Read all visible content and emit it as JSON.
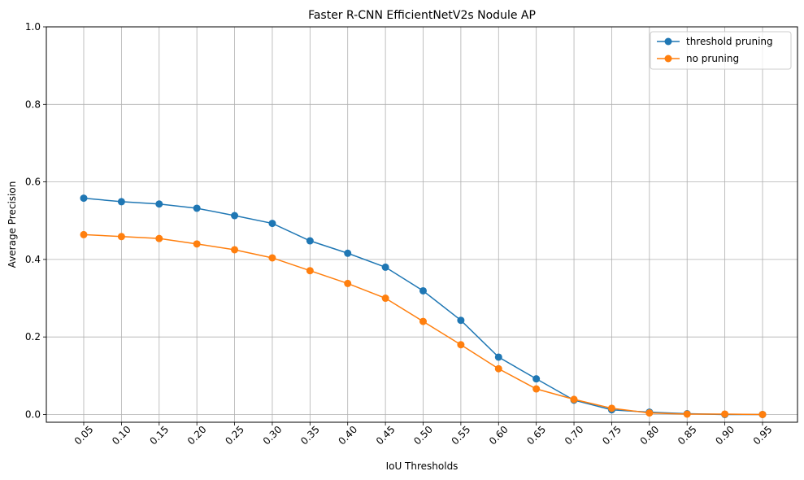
{
  "chart_data": {
    "type": "line",
    "title": "Faster R-CNN EfficientNetV2s Nodule AP",
    "xlabel": "IoU Thresholds",
    "ylabel": "Average Precision",
    "x": [
      "0.05",
      "0.10",
      "0.15",
      "0.20",
      "0.25",
      "0.30",
      "0.35",
      "0.40",
      "0.45",
      "0.50",
      "0.55",
      "0.60",
      "0.65",
      "0.70",
      "0.75",
      "0.80",
      "0.85",
      "0.90",
      "0.95"
    ],
    "ylim": [
      -0.02,
      1.0
    ],
    "yticks": [
      "0.0",
      "0.2",
      "0.4",
      "0.6",
      "0.8",
      "1.0"
    ],
    "grid": true,
    "legend": "top-right",
    "series": [
      {
        "name": "threshold pruning",
        "color": "#1f77b4",
        "values": [
          0.558,
          0.549,
          0.543,
          0.532,
          0.513,
          0.493,
          0.448,
          0.416,
          0.38,
          0.319,
          0.243,
          0.148,
          0.092,
          0.037,
          0.012,
          0.006,
          0.002,
          0.0,
          0.0
        ]
      },
      {
        "name": "no pruning",
        "color": "#ff7f0e",
        "values": [
          0.464,
          0.459,
          0.454,
          0.44,
          0.425,
          0.404,
          0.371,
          0.338,
          0.3,
          0.24,
          0.18,
          0.118,
          0.066,
          0.039,
          0.016,
          0.004,
          0.001,
          0.001,
          0.0
        ]
      }
    ]
  }
}
